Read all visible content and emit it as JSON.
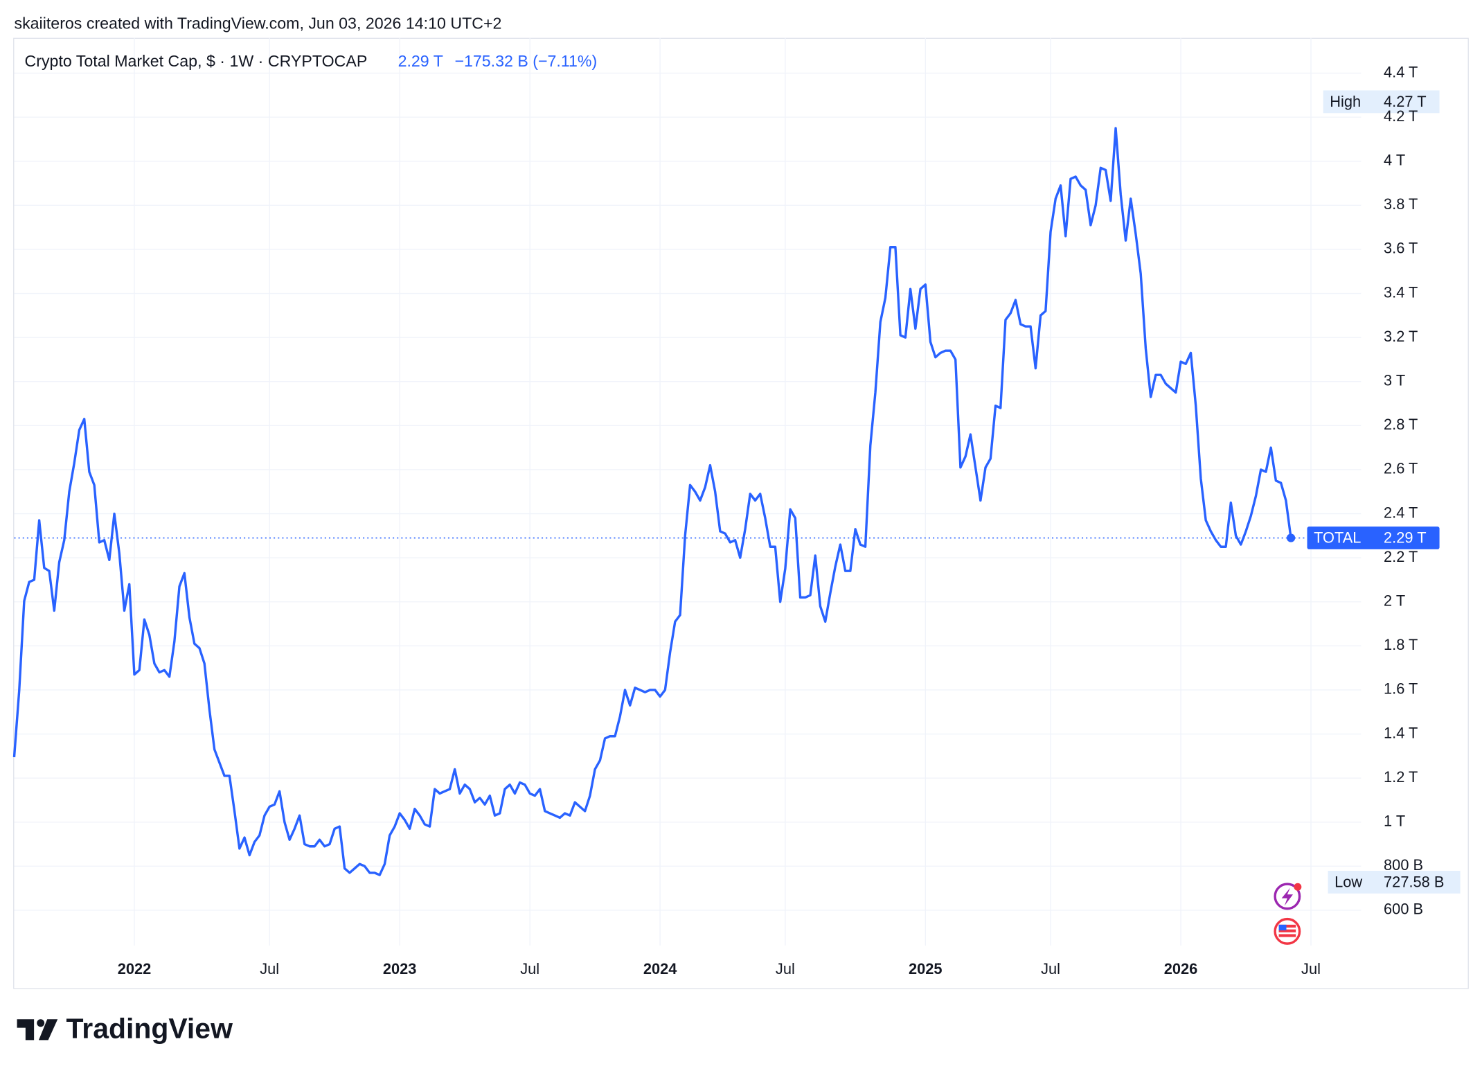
{
  "header": "skaiiteros created with TradingView.com, Jun 03, 2026 14:10 UTC+2",
  "brand": "TradingView",
  "chart_data": {
    "type": "line",
    "series": [
      {
        "name": "Crypto Total Market Cap, $ · 1W · CRYPTOCAP",
        "color": "#2962ff",
        "last_label": "2.29 T",
        "change": "−175.32 B (−7.11%)",
        "symbol": "TOTAL",
        "values": [
          1.295,
          1.596,
          2.004,
          2.09,
          2.1,
          2.37,
          2.154,
          2.14,
          1.96,
          2.18,
          2.28,
          2.5,
          2.63,
          2.78,
          2.83,
          2.59,
          2.53,
          2.27,
          2.28,
          2.19,
          2.4,
          2.22,
          1.96,
          2.08,
          1.67,
          1.69,
          1.92,
          1.85,
          1.72,
          1.68,
          1.69,
          1.66,
          1.82,
          2.07,
          2.13,
          1.93,
          1.81,
          1.79,
          1.72,
          1.51,
          1.33,
          1.27,
          1.21,
          1.21,
          1.05,
          0.88,
          0.93,
          0.85,
          0.91,
          0.94,
          1.03,
          1.07,
          1.08,
          1.14,
          1.0,
          0.92,
          0.97,
          1.03,
          0.9,
          0.89,
          0.89,
          0.92,
          0.89,
          0.9,
          0.97,
          0.98,
          0.79,
          0.77,
          0.79,
          0.81,
          0.8,
          0.77,
          0.77,
          0.76,
          0.81,
          0.94,
          0.98,
          1.04,
          1.01,
          0.97,
          1.06,
          1.03,
          0.99,
          0.98,
          1.15,
          1.13,
          1.14,
          1.15,
          1.24,
          1.13,
          1.17,
          1.15,
          1.09,
          1.11,
          1.08,
          1.12,
          1.03,
          1.04,
          1.15,
          1.17,
          1.13,
          1.18,
          1.17,
          1.13,
          1.12,
          1.15,
          1.05,
          1.04,
          1.03,
          1.02,
          1.04,
          1.03,
          1.09,
          1.07,
          1.05,
          1.12,
          1.24,
          1.28,
          1.38,
          1.39,
          1.39,
          1.48,
          1.6,
          1.53,
          1.61,
          1.6,
          1.59,
          1.6,
          1.6,
          1.57,
          1.6,
          1.77,
          1.91,
          1.94,
          2.3,
          2.53,
          2.5,
          2.46,
          2.52,
          2.62,
          2.5,
          2.32,
          2.31,
          2.27,
          2.28,
          2.2,
          2.33,
          2.49,
          2.46,
          2.49,
          2.38,
          2.25,
          2.25,
          2.0,
          2.15,
          2.42,
          2.38,
          2.02,
          2.02,
          2.03,
          2.21,
          1.98,
          1.91,
          2.04,
          2.16,
          2.26,
          2.14,
          2.14,
          2.33,
          2.26,
          2.25,
          2.71,
          2.95,
          3.27,
          3.38,
          3.61,
          3.61,
          3.21,
          3.2,
          3.42,
          3.24,
          3.42,
          3.44,
          3.18,
          3.11,
          3.13,
          3.14,
          3.14,
          3.1,
          2.61,
          2.66,
          2.76,
          2.61,
          2.46,
          2.61,
          2.65,
          2.89,
          2.88,
          3.28,
          3.31,
          3.37,
          3.26,
          3.25,
          3.25,
          3.06,
          3.3,
          3.32,
          3.68,
          3.83,
          3.89,
          3.66,
          3.92,
          3.93,
          3.89,
          3.87,
          3.71,
          3.8,
          3.97,
          3.96,
          3.82,
          4.15,
          3.85,
          3.64,
          3.83,
          3.67,
          3.49,
          3.15,
          2.93,
          3.03,
          3.03,
          2.99,
          2.97,
          2.95,
          3.09,
          3.08,
          3.13,
          2.89,
          2.56,
          2.37,
          2.32,
          2.28,
          2.25,
          2.25,
          2.45,
          2.3,
          2.26,
          2.32,
          2.39,
          2.48,
          2.6,
          2.59,
          2.7,
          2.55,
          2.54,
          2.46,
          2.29
        ]
      }
    ],
    "high": {
      "name": "High",
      "value": 4.27,
      "label": "4.27 T"
    },
    "low": {
      "name": "Low",
      "value": 0.72758,
      "label": "727.58 B"
    },
    "xlim": [
      0,
      269
    ],
    "xticks": [
      {
        "value": 24,
        "label": "2022"
      },
      {
        "value": 51,
        "label": "Jul"
      },
      {
        "value": 77,
        "label": "2023"
      },
      {
        "value": 103,
        "label": "Jul"
      },
      {
        "value": 129,
        "label": "2024"
      },
      {
        "value": 154,
        "label": "Jul"
      },
      {
        "value": 182,
        "label": "2025"
      },
      {
        "value": 207,
        "label": "Jul"
      },
      {
        "value": 233,
        "label": "2026"
      },
      {
        "value": 259,
        "label": "Jul"
      }
    ],
    "ylim": [
      0.44,
      4.56
    ],
    "yticks": [
      {
        "value": 0.6,
        "label": "600 B"
      },
      {
        "value": 0.8,
        "label": "800 B"
      },
      {
        "value": 1,
        "label": "1 T"
      },
      {
        "value": 1.2,
        "label": "1.2 T"
      },
      {
        "value": 1.4,
        "label": "1.4 T"
      },
      {
        "value": 1.6,
        "label": "1.6 T"
      },
      {
        "value": 1.8,
        "label": "1.8 T"
      },
      {
        "value": 2,
        "label": "2 T"
      },
      {
        "value": 2.2,
        "label": "2.2 T"
      },
      {
        "value": 2.4,
        "label": "2.4 T"
      },
      {
        "value": 2.6,
        "label": "2.6 T"
      },
      {
        "value": 2.8,
        "label": "2.8 T"
      },
      {
        "value": 3,
        "label": "3 T"
      },
      {
        "value": 3.2,
        "label": "3.2 T"
      },
      {
        "value": 3.4,
        "label": "3.4 T"
      },
      {
        "value": 3.6,
        "label": "3.6 T"
      },
      {
        "value": 3.8,
        "label": "3.8 T"
      },
      {
        "value": 4,
        "label": "4 T"
      },
      {
        "value": 4.2,
        "label": "4.2 T"
      },
      {
        "value": 4.4,
        "label": "4.4 T"
      }
    ],
    "grid": true
  }
}
